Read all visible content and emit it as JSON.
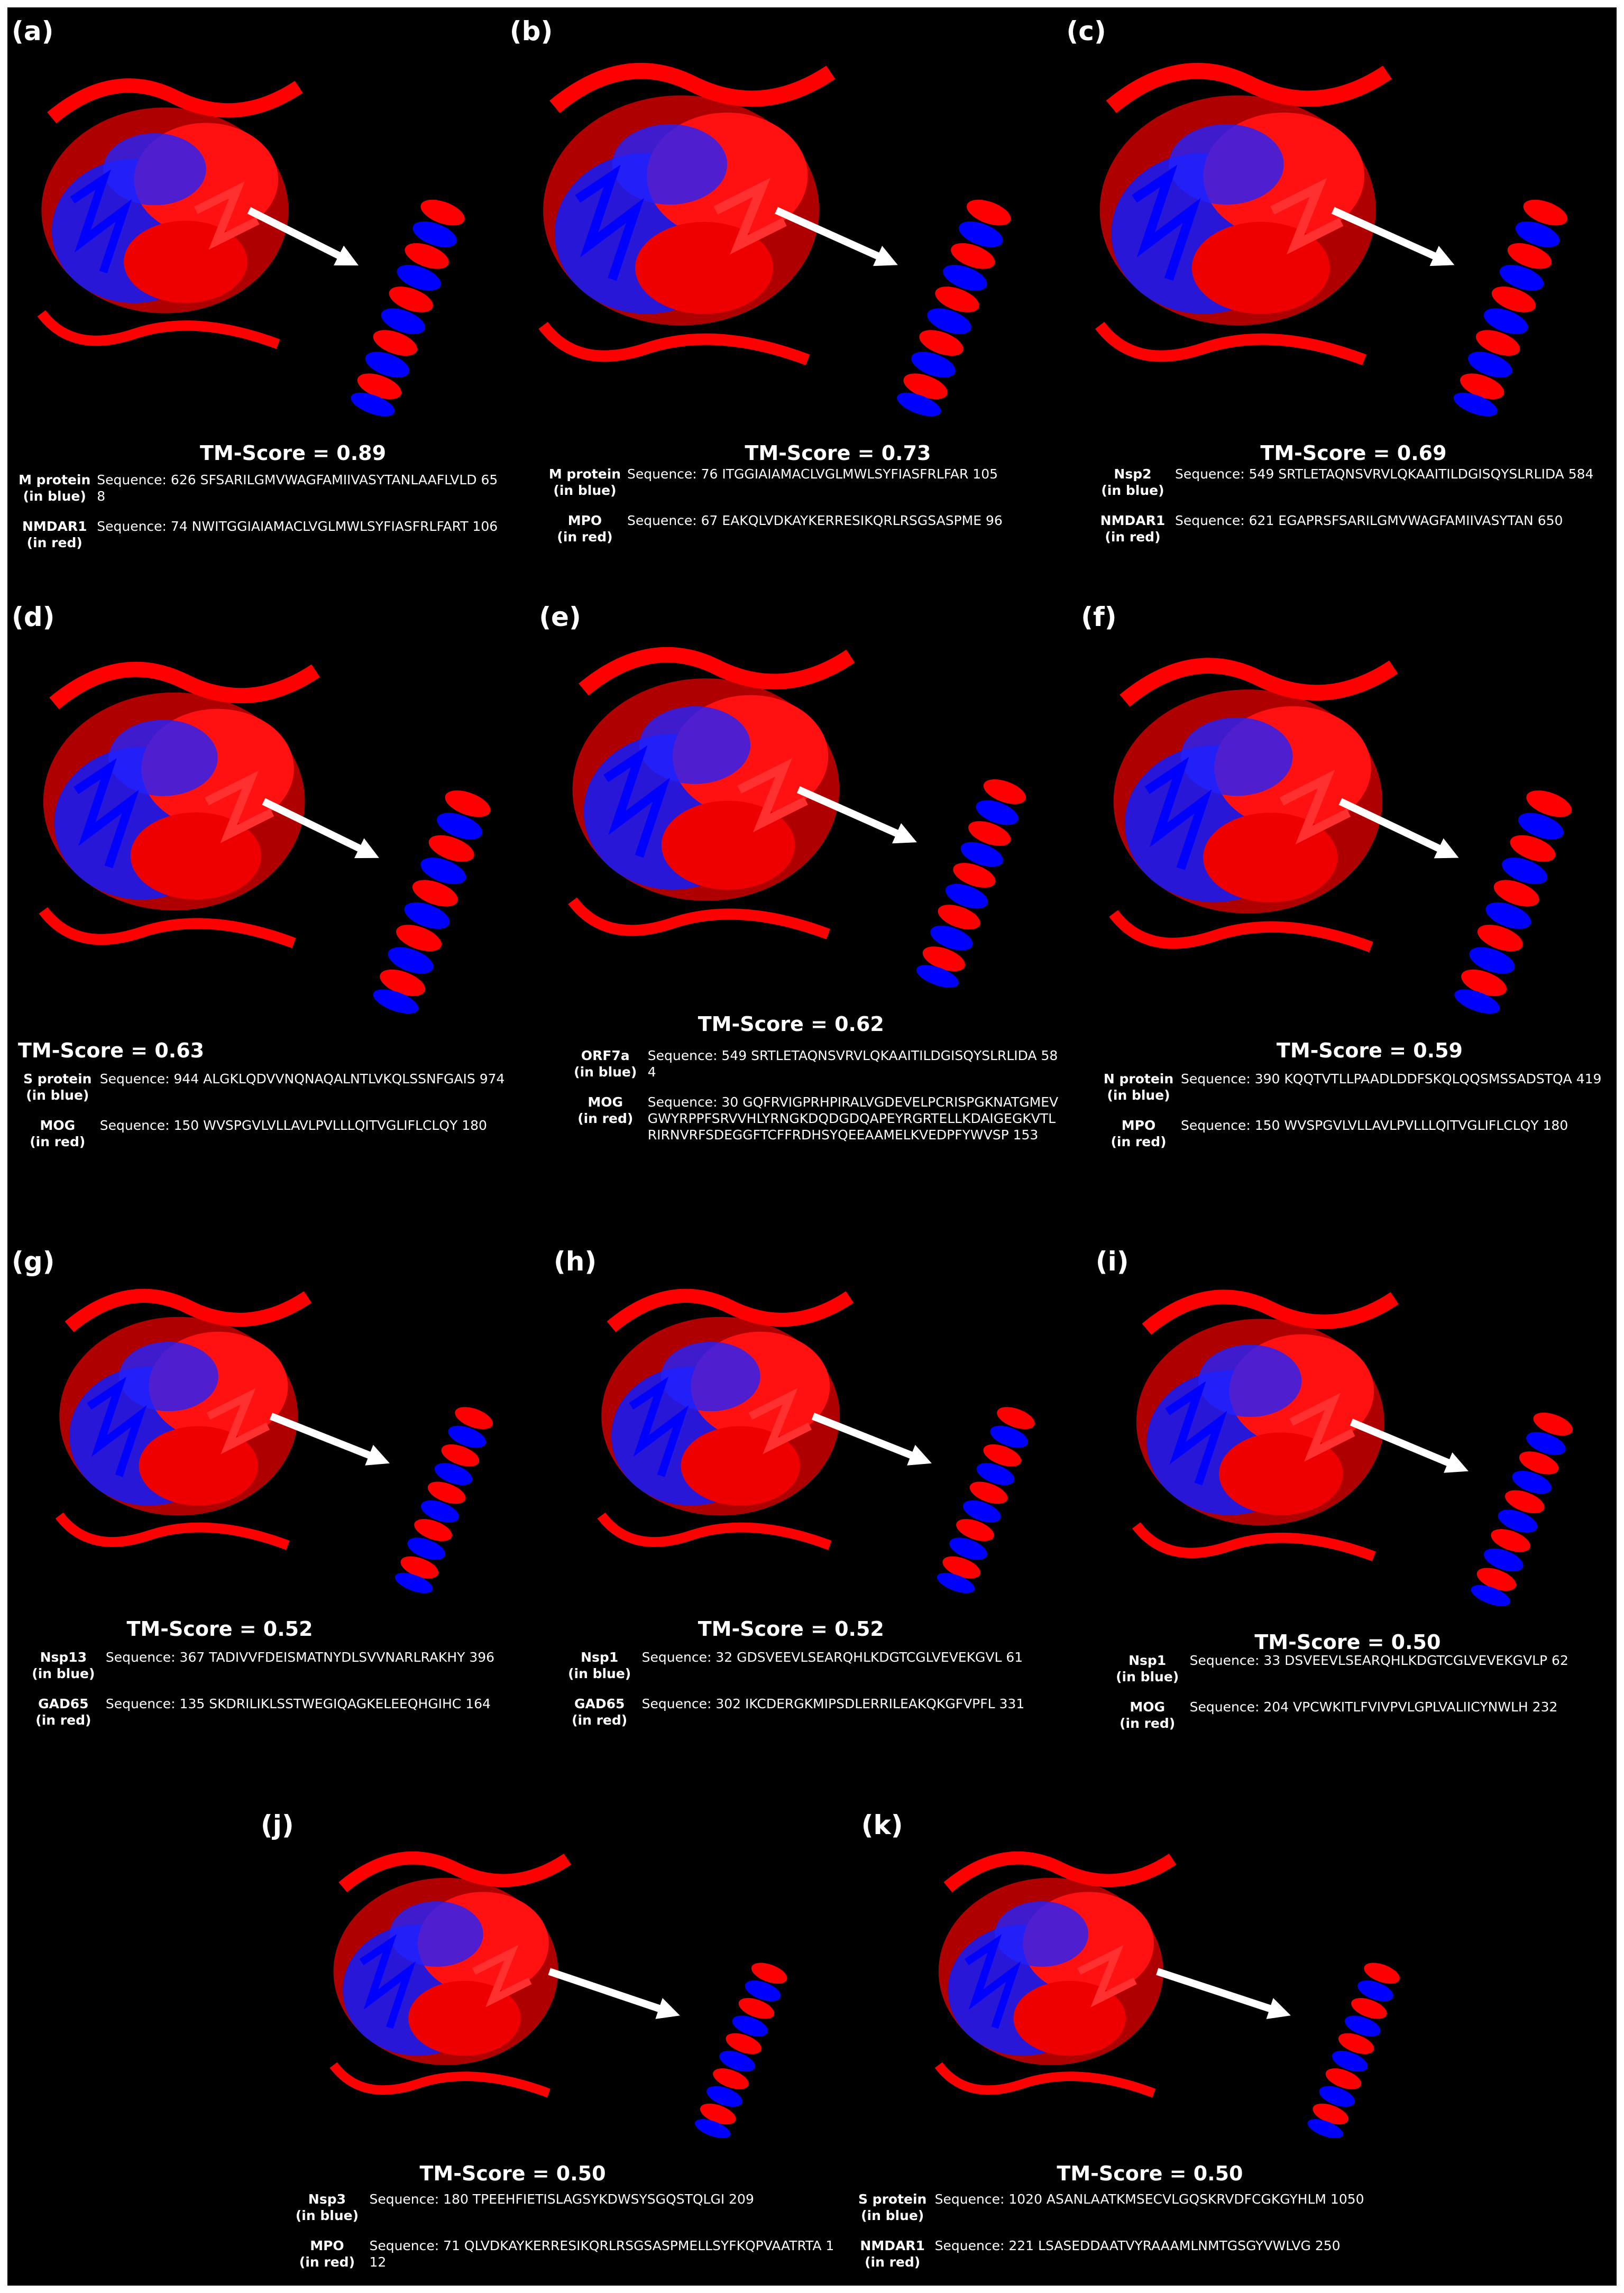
{
  "panels": [
    {
      "label": "(a)",
      "tm_score": "TM-Score = 0.89",
      "rows": [
        {
          "protein": "M protein",
          "note": "(in blue)",
          "sequence": "Sequence: 626 SFSARILGMVWAGFAMIIVASYTANLAAFLVLD 658"
        },
        {
          "protein": "NMDAR1",
          "note": "(in red)",
          "sequence": "Sequence: 74 NWITGGIAIAMACLVGLMWLSYFIASFRLFART 106"
        }
      ]
    },
    {
      "label": "(b)",
      "tm_score": "TM-Score = 0.73",
      "rows": [
        {
          "protein": "M protein",
          "note": "(in blue)",
          "sequence": "Sequence: 76 ITGGIAIAMACLVGLMWLSYFIASFRLFAR 105"
        },
        {
          "protein": "MPO",
          "note": "(in red)",
          "sequence": "Sequence: 67 EAKQLVDKAYKERRESIKQRLRSGSASPME 96"
        }
      ]
    },
    {
      "label": "(c)",
      "tm_score": "TM-Score = 0.69",
      "rows": [
        {
          "protein": "Nsp2",
          "note": "(in blue)",
          "sequence": "Sequence: 549 SRTLETAQNSVRVLQKAAITILDGISQYSLRLIDA 584"
        },
        {
          "protein": "NMDAR1",
          "note": "(in red)",
          "sequence": "Sequence: 621 EGAPRSFSARILGMVWAGFAMIIVASYTAN 650"
        }
      ]
    },
    {
      "label": "(d)",
      "tm_score": "TM-Score = 0.63",
      "rows": [
        {
          "protein": "S protein",
          "note": "(in blue)",
          "sequence": "Sequence: 944 ALGKLQDVVNQNAQALNTLVKQLSSNFGAIS 974"
        },
        {
          "protein": "MOG",
          "note": "(in red)",
          "sequence": "Sequence: 150 WVSPGVLVLLAVLPVLLLQITVGLIFLCLQY 180"
        }
      ]
    },
    {
      "label": "(e)",
      "tm_score": "TM-Score = 0.62",
      "rows": [
        {
          "protein": "ORF7a",
          "note": "(in blue)",
          "sequence": "Sequence: 549 SRTLETAQNSVRVLQKAAITILDGISQYSLRLIDA 584"
        },
        {
          "protein": "MOG",
          "note": "(in red)",
          "sequence": "Sequence: 30 GQFRVIGPRHPIRALVGDEVELPCRISPGKNATGMEVGWYRPPFSRVVHLYRNGKDQDGDQAPEYRGRTELLKDAIGEGKVTLRIRNVRFSDEGGFTCFFRDHSYQEEAAMELKVEDPFYWVSP 153"
        }
      ]
    },
    {
      "label": "(f)",
      "tm_score": "TM-Score = 0.59",
      "rows": [
        {
          "protein": "N protein",
          "note": "(in blue)",
          "sequence": "Sequence: 390 KQQTVTLLPAADLDDFSKQLQQSMSSADSTQA 419"
        },
        {
          "protein": "MPO",
          "note": "(in red)",
          "sequence": "Sequence: 150 WVSPGVLVLLAVLPVLLLQITVGLIFLCLQY 180"
        }
      ]
    },
    {
      "label": "(g)",
      "tm_score": "TM-Score = 0.52",
      "rows": [
        {
          "protein": "Nsp13",
          "note": "(in blue)",
          "sequence": "Sequence: 367 TADIVVFDEISMATNYDLSVVNARLRAKHY 396"
        },
        {
          "protein": "GAD65",
          "note": "(in red)",
          "sequence": "Sequence: 135 SKDRILIKLSSTWEGIQAGKELEEQHGIHC 164"
        }
      ]
    },
    {
      "label": "(h)",
      "tm_score": "TM-Score = 0.52",
      "rows": [
        {
          "protein": "Nsp1",
          "note": "(in blue)",
          "sequence": "Sequence: 32 GDSVEEVLSEARQHLKDGTCGLVEVEKGVL 61"
        },
        {
          "protein": "GAD65",
          "note": "(in red)",
          "sequence": "Sequence: 302 IKCDERGKMIPSDLERRILEAKQKGFVPFL 331"
        }
      ]
    },
    {
      "label": "(i)",
      "tm_score": "TM-Score = 0.50",
      "rows": [
        {
          "protein": "Nsp1",
          "note": "(in blue)",
          "sequence": "Sequence: 33 DSVEEVLSEARQHLKDGTCGLVEVEKGVLP 62"
        },
        {
          "protein": "MOG",
          "note": "(in red)",
          "sequence": "Sequence: 204 VPCWKITLFVIVPVLGPLVALIICYNWLH 232"
        }
      ]
    },
    {
      "label": "(j)",
      "tm_score": "TM-Score = 0.50",
      "rows": [
        {
          "protein": "Nsp3",
          "note": "(in blue)",
          "sequence": "Sequence: 180 TPEEHFIETISLAGSYKDWSYSGQSTQLGI 209"
        },
        {
          "protein": "MPO",
          "note": "(in red)",
          "sequence": "Sequence: 71 QLVDKAYKERRESIKQRLRSGSASPMELLSYFKQPVAATRTA 112"
        }
      ]
    },
    {
      "label": "(k)",
      "tm_score": "TM-Score = 0.50",
      "rows": [
        {
          "protein": "S protein",
          "note": "(in blue)",
          "sequence": "Sequence: 1020 ASANLAATKMSECVLGQSKRVDFCGKGYHLM 1050"
        },
        {
          "protein": "NMDAR1",
          "note": "(in red)",
          "sequence": "Sequence: 221 LSASEDDAATVYRAAAMLNMTGSGYVWLVG 250"
        }
      ]
    }
  ]
}
